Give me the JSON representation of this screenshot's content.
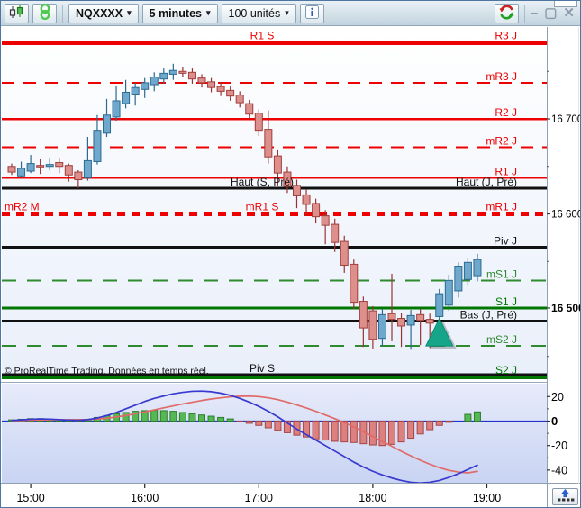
{
  "toolbar": {
    "instrument": "NQXXXX",
    "timeframe": "5 minutes",
    "units": "100 unités",
    "dropdown_glyph": "▾",
    "icons": [
      "candlestick-chart-icon",
      "link-icon",
      "info-icon",
      "refresh-icon"
    ]
  },
  "window": {
    "controls": {
      "minimize": "–",
      "maximize": "▢",
      "close": "✕"
    }
  },
  "chart": {
    "copyright": "© ProRealTime Trading. Données en temps réel.",
    "current_price_label": "16 500",
    "accent_colors": {
      "up_candle": "#6fa8cd",
      "down_candle": "#dd8f8c",
      "level_red": "#ee0000",
      "level_green": "#007700",
      "level_black": "#111111",
      "marker_teal": "#17a589"
    }
  },
  "chart_data": {
    "type": "candlestick",
    "title": "NQXXXX 5 minutes",
    "x": [
      "14:50",
      "14:55",
      "15:00",
      "15:05",
      "15:10",
      "15:15",
      "15:20",
      "15:25",
      "15:30",
      "15:35",
      "15:40",
      "15:45",
      "15:50",
      "15:55",
      "16:00",
      "16:05",
      "16:10",
      "16:15",
      "16:20",
      "16:25",
      "16:30",
      "16:35",
      "16:40",
      "16:45",
      "16:50",
      "16:55",
      "17:00",
      "17:05",
      "17:10",
      "17:15",
      "17:20",
      "17:25",
      "17:30",
      "17:35",
      "17:40",
      "17:45",
      "17:50",
      "17:55",
      "18:00",
      "18:05",
      "18:10",
      "18:15",
      "18:20",
      "18:25",
      "18:30",
      "18:35",
      "18:40",
      "18:45",
      "18:50",
      "18:55"
    ],
    "x_ticks": [
      "15:00",
      "16:00",
      "17:00",
      "18:00",
      "19:00"
    ],
    "ylim": [
      16425,
      16795
    ],
    "yticks_labeled": [
      {
        "text": "16 700",
        "price": 16700,
        "bold": false
      },
      {
        "text": "16 600",
        "price": 16600,
        "bold": false
      },
      {
        "text": "16 500",
        "price": 16500,
        "bold": true
      }
    ],
    "yticks_minor": [
      16750,
      16650,
      16550,
      16450
    ],
    "ohlc": [
      [
        16650,
        16653,
        16641,
        16644
      ],
      [
        16640,
        16655,
        16638,
        16648
      ],
      [
        16645,
        16662,
        16643,
        16653
      ],
      [
        16651,
        16658,
        16642,
        16650
      ],
      [
        16650,
        16659,
        16646,
        16652
      ],
      [
        16654,
        16659,
        16643,
        16650
      ],
      [
        16651,
        16653,
        16634,
        16641
      ],
      [
        16644,
        16646,
        16627,
        16636
      ],
      [
        16638,
        16681,
        16635,
        16656
      ],
      [
        16655,
        16704,
        16652,
        16688
      ],
      [
        16685,
        16721,
        16681,
        16704
      ],
      [
        16702,
        16735,
        16698,
        16719
      ],
      [
        16716,
        16741,
        16711,
        16728
      ],
      [
        16726,
        16738,
        16714,
        16733
      ],
      [
        16731,
        16743,
        16722,
        16738
      ],
      [
        16736,
        16749,
        16729,
        16744
      ],
      [
        16742,
        16753,
        16737,
        16748
      ],
      [
        16747,
        16758,
        16741,
        16751
      ],
      [
        16750,
        16755,
        16744,
        16748
      ],
      [
        16749,
        16753,
        16737,
        16742
      ],
      [
        16743,
        16747,
        16733,
        16738
      ],
      [
        16739,
        16743,
        16728,
        16733
      ],
      [
        16734,
        16739,
        16724,
        16729
      ],
      [
        16730,
        16734,
        16719,
        16724
      ],
      [
        16725,
        16729,
        16712,
        16717
      ],
      [
        16716,
        16720,
        16700,
        16705
      ],
      [
        16706,
        16710,
        16682,
        16688
      ],
      [
        16689,
        16709,
        16653,
        16660
      ],
      [
        16661,
        16667,
        16630,
        16643
      ],
      [
        16644,
        16650,
        16622,
        16629
      ],
      [
        16630,
        16636,
        16606,
        16619
      ],
      [
        16620,
        16626,
        16598,
        16610
      ],
      [
        16611,
        16616,
        16590,
        16597
      ],
      [
        16598,
        16604,
        16568,
        16588
      ],
      [
        16589,
        16595,
        16560,
        16570
      ],
      [
        16571,
        16577,
        16538,
        16546
      ],
      [
        16547,
        16552,
        16500,
        16507
      ],
      [
        16508,
        16513,
        16460,
        16480
      ],
      [
        16498,
        16503,
        16458,
        16468
      ],
      [
        16469,
        16500,
        16461,
        16494
      ],
      [
        16495,
        16537,
        16466,
        16489
      ],
      [
        16490,
        16496,
        16460,
        16482
      ],
      [
        16483,
        16499,
        16457,
        16493
      ],
      [
        16494,
        16500,
        16462,
        16488
      ],
      [
        16489,
        16495,
        16459,
        16485
      ],
      [
        16492,
        16521,
        16486,
        16516
      ],
      [
        16504,
        16536,
        16498,
        16530
      ],
      [
        16519,
        16549,
        16512,
        16545
      ],
      [
        16531,
        16554,
        16525,
        16549
      ],
      [
        16535,
        16558,
        16529,
        16552
      ]
    ],
    "levels": [
      {
        "name": "R1S-R3J",
        "price": 16780,
        "color": "#ee0000",
        "width": 5,
        "label_center": "R1 S",
        "label_right": "R3 J"
      },
      {
        "name": "mR3J",
        "price": 16738,
        "color": "#ee0000",
        "width": 2,
        "dash": "14,10",
        "label_right": "mR3 J"
      },
      {
        "name": "R2J",
        "price": 16700,
        "color": "#ee0000",
        "width": 2.5,
        "label_right": "R2 J",
        "axis_label": "16 700"
      },
      {
        "name": "mR2J",
        "price": 16670,
        "color": "#ee0000",
        "width": 2,
        "dash": "14,10",
        "label_right": "mR2 J"
      },
      {
        "name": "R1J",
        "price": 16638,
        "color": "#ee0000",
        "width": 2.5,
        "label_right": "R1 J"
      },
      {
        "name": "Haut",
        "price": 16627,
        "color": "#111111",
        "width": 3,
        "label_center": "Haut (S, Pré)",
        "label_right": "Haut (J, Pré)"
      },
      {
        "name": "mR1",
        "price": 16600,
        "color": "#ee0000",
        "width": 5,
        "dash": "9,7",
        "label_left": "mR2 M",
        "label_center": "mR1 S",
        "label_right": "mR1 J",
        "axis_label": "16 600"
      },
      {
        "name": "PivJ",
        "price": 16565,
        "color": "#111111",
        "width": 3,
        "label_right": "Piv J"
      },
      {
        "name": "mS1J",
        "price": 16530,
        "color": "#2e8b2e",
        "width": 2,
        "dash": "16,12",
        "label_right": "mS1 J"
      },
      {
        "name": "S1J",
        "price": 16501,
        "color": "#007700",
        "width": 3,
        "label_right": "S1 J",
        "axis_label": "16 500",
        "axis_bold": true
      },
      {
        "name": "Bas",
        "price": 16487,
        "color": "#111111",
        "width": 3,
        "label_right": "Bas (J, Pré)"
      },
      {
        "name": "mS2J",
        "price": 16461,
        "color": "#2e8b2e",
        "width": 2,
        "dash": "16,12",
        "label_right": "mS2 J"
      },
      {
        "name": "PivS",
        "price": 16431,
        "color": "#111111",
        "width": 3,
        "label_center": "Piv S"
      },
      {
        "name": "S2J",
        "price": 16428,
        "color": "#007700",
        "width": 4,
        "label_right": "S2 J"
      }
    ],
    "marker": {
      "type": "triangle-up",
      "x_index": 45,
      "price_top": 16490,
      "price_base": 16461,
      "color": "#17a589"
    },
    "indicator": {
      "name": "MACD",
      "ylim": [
        -50,
        30
      ],
      "yticks": [
        {
          "text": "20",
          "value": 20,
          "bold": false
        },
        {
          "text": "0",
          "value": 0,
          "bold": true
        },
        {
          "text": "-20",
          "value": -20,
          "bold": false
        },
        {
          "text": "-40",
          "value": -40,
          "bold": false
        }
      ],
      "yticks_minor": [
        10,
        -10,
        -30
      ],
      "histogram": [
        1,
        1.5,
        2,
        2,
        1.5,
        1,
        0.5,
        0.5,
        1.5,
        3,
        4.5,
        6,
        7,
        8,
        8.5,
        8.7,
        8.5,
        8,
        7,
        6,
        5,
        4,
        3,
        1.8,
        -0.5,
        -1.8,
        -3.5,
        -5.5,
        -7.5,
        -9.5,
        -11.5,
        -13,
        -14.5,
        -15.5,
        -16.5,
        -17,
        -17.5,
        -18.5,
        -19.5,
        -20,
        -19,
        -17,
        -14,
        -10.5,
        -7,
        -3.5,
        -1,
        0,
        5.5,
        7.5
      ],
      "macd_line": [
        [
          0,
          0.5
        ],
        [
          1,
          1
        ],
        [
          2,
          1.5
        ],
        [
          3,
          1.8
        ],
        [
          4,
          1.6
        ],
        [
          5,
          1.2
        ],
        [
          6,
          0.8
        ],
        [
          7,
          0.6
        ],
        [
          8,
          1.2
        ],
        [
          9,
          2.5
        ],
        [
          10,
          4.5
        ],
        [
          11,
          7
        ],
        [
          12,
          10
        ],
        [
          13,
          13
        ],
        [
          14,
          16
        ],
        [
          15,
          18.5
        ],
        [
          16,
          20.5
        ],
        [
          17,
          22.3
        ],
        [
          18,
          23.5
        ],
        [
          19,
          24.3
        ],
        [
          20,
          24.5
        ],
        [
          21,
          24
        ],
        [
          22,
          22.8
        ],
        [
          23,
          21
        ],
        [
          24,
          18.5
        ],
        [
          25,
          15.5
        ],
        [
          26,
          12
        ],
        [
          27,
          8
        ],
        [
          28,
          3.5
        ],
        [
          29,
          -1.5
        ],
        [
          30,
          -6.5
        ],
        [
          31,
          -11
        ],
        [
          32,
          -15.5
        ],
        [
          33,
          -20
        ],
        [
          34,
          -24.5
        ],
        [
          35,
          -29
        ],
        [
          36,
          -33.5
        ],
        [
          37,
          -37.5
        ],
        [
          38,
          -41
        ],
        [
          39,
          -44
        ],
        [
          40,
          -46.5
        ],
        [
          41,
          -48.5
        ],
        [
          42,
          -50
        ],
        [
          43,
          -50.5
        ],
        [
          44,
          -50
        ],
        [
          45,
          -48.5
        ],
        [
          46,
          -46
        ],
        [
          47,
          -43
        ],
        [
          48,
          -39.5
        ],
        [
          49,
          -36
        ]
      ],
      "signal_line": [
        [
          0,
          0.3
        ],
        [
          2,
          0.8
        ],
        [
          4,
          1.1
        ],
        [
          6,
          1.1
        ],
        [
          8,
          1.3
        ],
        [
          10,
          2.3
        ],
        [
          12,
          4.5
        ],
        [
          14,
          7.5
        ],
        [
          16,
          10.8
        ],
        [
          18,
          14
        ],
        [
          20,
          16.8
        ],
        [
          21,
          18
        ],
        [
          22,
          19
        ],
        [
          23,
          19.8
        ],
        [
          24,
          20.3
        ],
        [
          25,
          20.4
        ],
        [
          26,
          20
        ],
        [
          27,
          19
        ],
        [
          28,
          17.5
        ],
        [
          29,
          15.5
        ],
        [
          30,
          13.2
        ],
        [
          31,
          10.7
        ],
        [
          32,
          8
        ],
        [
          33,
          5
        ],
        [
          34,
          2
        ],
        [
          35,
          -1.2
        ],
        [
          36,
          -4.8
        ],
        [
          37,
          -8.6
        ],
        [
          38,
          -12.6
        ],
        [
          39,
          -16.6
        ],
        [
          40,
          -20.6
        ],
        [
          41,
          -24.6
        ],
        [
          42,
          -28.4
        ],
        [
          43,
          -32
        ],
        [
          44,
          -35.2
        ],
        [
          45,
          -38
        ],
        [
          46,
          -40.2
        ],
        [
          47,
          -41.6
        ],
        [
          48,
          -42.3
        ],
        [
          49,
          -41
        ]
      ],
      "colors": {
        "histogram_up": "#55b855",
        "histogram_down": "#dd8080",
        "macd": "#3939cf",
        "signal": "#e06a68",
        "zero_line": "#2233cc"
      }
    }
  }
}
